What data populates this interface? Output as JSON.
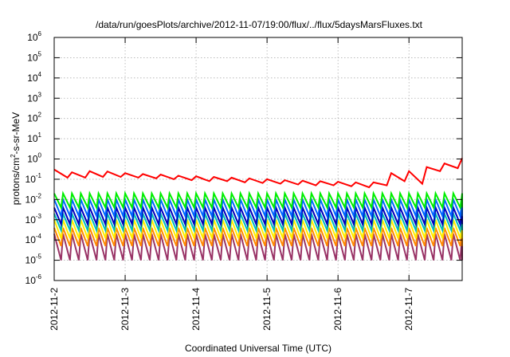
{
  "chart_data": {
    "type": "line",
    "title": "/data/run/goesPlots/archive/2012-11-07/19:00/flux/../flux/5daysMarsFluxes.txt",
    "xlabel": "Coordinated Universal Time (UTC)",
    "ylabel": "protons/cm2-s-sr-MeV",
    "ylabel_parts": {
      "pre": "protons/cm",
      "sup": "2",
      "post": "-s-sr-MeV"
    },
    "x_scale": "time",
    "y_scale": "log",
    "xlim": [
      "2012-11-02T00:00",
      "2012-11-07T18:00"
    ],
    "ylim": [
      1e-06,
      1000000.0
    ],
    "grid": true,
    "legend": "none",
    "x_ticks": [
      {
        "label": "2012-11-2",
        "date": "2012-11-02"
      },
      {
        "label": "2012-11-3",
        "date": "2012-11-03"
      },
      {
        "label": "2012-11-4",
        "date": "2012-11-04"
      },
      {
        "label": "2012-11-5",
        "date": "2012-11-05"
      },
      {
        "label": "2012-11-6",
        "date": "2012-11-06"
      },
      {
        "label": "2012-11-7",
        "date": "2012-11-07"
      }
    ],
    "y_ticks": [
      {
        "base": "10",
        "exp": "-6"
      },
      {
        "base": "10",
        "exp": "-5"
      },
      {
        "base": "10",
        "exp": "-4"
      },
      {
        "base": "10",
        "exp": "-3"
      },
      {
        "base": "10",
        "exp": "-2"
      },
      {
        "base": "10",
        "exp": "-1"
      },
      {
        "base": "10",
        "exp": "0"
      },
      {
        "base": "10",
        "exp": "1"
      },
      {
        "base": "10",
        "exp": "2"
      },
      {
        "base": "10",
        "exp": "3"
      },
      {
        "base": "10",
        "exp": "4"
      },
      {
        "base": "10",
        "exp": "5"
      },
      {
        "base": "10",
        "exp": "6"
      }
    ],
    "series": [
      {
        "color": "#ff0000",
        "x": [
          "2012-11-02T00:00",
          "2012-11-02T04:30",
          "2012-11-02T06:00",
          "2012-11-02T10:30",
          "2012-11-02T12:00",
          "2012-11-02T16:30",
          "2012-11-02T18:00",
          "2012-11-02T22:30",
          "2012-11-03T00:00",
          "2012-11-03T04:30",
          "2012-11-03T06:00",
          "2012-11-03T10:30",
          "2012-11-03T12:00",
          "2012-11-03T16:30",
          "2012-11-03T18:00",
          "2012-11-03T22:30",
          "2012-11-04T00:00",
          "2012-11-04T04:30",
          "2012-11-04T06:00",
          "2012-11-04T10:30",
          "2012-11-04T12:00",
          "2012-11-04T16:30",
          "2012-11-04T18:00",
          "2012-11-04T22:30",
          "2012-11-05T00:00",
          "2012-11-05T04:30",
          "2012-11-05T06:00",
          "2012-11-05T10:30",
          "2012-11-05T12:00",
          "2012-11-05T16:30",
          "2012-11-05T18:00",
          "2012-11-05T22:30",
          "2012-11-06T00:00",
          "2012-11-06T04:30",
          "2012-11-06T06:00",
          "2012-11-06T10:30",
          "2012-11-06T12:00",
          "2012-11-06T16:30",
          "2012-11-06T18:00",
          "2012-11-06T22:30",
          "2012-11-07T00:00",
          "2012-11-07T04:30",
          "2012-11-07T06:00",
          "2012-11-07T10:30",
          "2012-11-07T12:00",
          "2012-11-07T16:30",
          "2012-11-07T18:00"
        ],
        "values": [
          0.3,
          0.12,
          0.22,
          0.12,
          0.25,
          0.13,
          0.24,
          0.13,
          0.2,
          0.12,
          0.18,
          0.11,
          0.17,
          0.1,
          0.15,
          0.09,
          0.14,
          0.08,
          0.13,
          0.08,
          0.12,
          0.07,
          0.11,
          0.065,
          0.1,
          0.06,
          0.09,
          0.055,
          0.085,
          0.05,
          0.08,
          0.05,
          0.075,
          0.045,
          0.07,
          0.04,
          0.07,
          0.05,
          0.2,
          0.08,
          0.25,
          0.06,
          0.4,
          0.25,
          0.6,
          0.35,
          1.1
        ]
      },
      {
        "color": "#00ee00",
        "peak": 0.02,
        "trough": 0.004
      },
      {
        "color": "#0066ff",
        "peak": 0.01,
        "trough": 0.0015
      },
      {
        "color": "#0000bb",
        "peak": 0.004,
        "trough": 0.0006
      },
      {
        "color": "#00bbbb",
        "peak": 0.002,
        "trough": 0.0003
      },
      {
        "color": "#ffee00",
        "peak": 0.001,
        "trough": 0.00012
      },
      {
        "color": "#ff8800",
        "peak": 0.0004,
        "trough": 5e-05
      },
      {
        "color": "#993366",
        "peak": 0.0002,
        "trough": 1e-05
      }
    ],
    "oscillation_period_hours": 3
  }
}
